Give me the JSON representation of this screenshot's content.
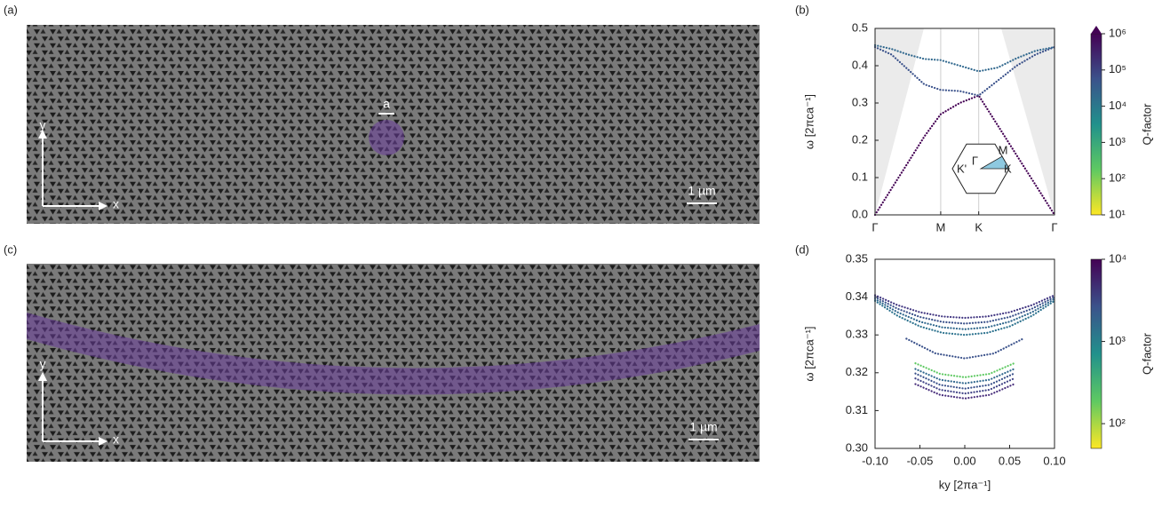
{
  "panels": [
    "(a)",
    "(b)",
    "(c)",
    "(d)"
  ],
  "sem_a": {
    "lattice": "a",
    "axis_x": "x",
    "axis_y": "y",
    "scale_bar": "1 µm"
  },
  "sem_c": {
    "axis_x": "x",
    "axis_y": "y",
    "scale_bar": "1 µm"
  },
  "chart_data": [
    {
      "type": "scatter",
      "ylabel": "ω [2πca⁻¹]",
      "xlim": [
        0,
        1.577
      ],
      "ylim": [
        0,
        0.5
      ],
      "xticks": [
        {
          "value": 0,
          "label": "Γ"
        },
        {
          "value": 0.577,
          "label": "M"
        },
        {
          "value": 0.911,
          "label": "K"
        },
        {
          "value": 1.577,
          "label": "Γ"
        }
      ],
      "yticks": [
        {
          "value": 0,
          "label": "0.0"
        },
        0.1,
        0.2,
        0.3,
        0.4,
        0.5
      ],
      "xgrid": true,
      "inset_labels": [
        "Γ",
        "M",
        "K",
        "K'"
      ],
      "colorbar": {
        "label": "Q-factor",
        "lim": [
          10,
          1000000
        ],
        "ticks": [
          {
            "value": 10,
            "label": "10¹"
          },
          {
            "value": 100,
            "label": "10²"
          },
          {
            "value": 1000,
            "label": "10³"
          },
          {
            "value": 10000,
            "label": "10⁴"
          },
          {
            "value": 100000,
            "label": "10⁵"
          },
          {
            "value": 1000000,
            "label": "10⁶"
          }
        ]
      },
      "series": [
        {
          "color": "#440154",
          "x": [
            0,
            0.144,
            0.289,
            0.433,
            0.577,
            0.744,
            0.911,
            1.078,
            1.244,
            1.411,
            1.577
          ],
          "values": [
            0,
            0.07,
            0.14,
            0.21,
            0.27,
            0.3,
            0.32,
            0.24,
            0.16,
            0.08,
            0
          ]
        },
        {
          "color": "#3b528b",
          "x": [
            0,
            0.144,
            0.289,
            0.433,
            0.577,
            0.744,
            0.911,
            1.078,
            1.244,
            1.411,
            1.577
          ],
          "values": [
            0.45,
            0.43,
            0.39,
            0.35,
            0.335,
            0.332,
            0.32,
            0.36,
            0.4,
            0.43,
            0.45
          ]
        },
        {
          "color": "#31688e",
          "x": [
            0,
            0.144,
            0.289,
            0.433,
            0.577,
            0.744,
            0.911,
            1.078,
            1.244,
            1.411,
            1.577
          ],
          "values": [
            0.455,
            0.445,
            0.43,
            0.418,
            0.415,
            0.4,
            0.385,
            0.395,
            0.42,
            0.44,
            0.45
          ]
        }
      ]
    },
    {
      "type": "scatter",
      "ylabel": "ω [2πca⁻¹]",
      "xlabel": "ky [2πa⁻¹]",
      "xlim": [
        -0.1,
        0.1
      ],
      "ylim": [
        0.3,
        0.35
      ],
      "xticks": [
        {
          "value": -0.1,
          "label": "-0.10"
        },
        {
          "value": -0.05,
          "label": "-0.05"
        },
        {
          "value": 0,
          "label": "0.00"
        },
        0.05,
        {
          "value": 0.1,
          "label": "0.10"
        }
      ],
      "yticks": [
        {
          "value": 0.3,
          "label": "0.30"
        },
        0.31,
        0.32,
        0.33,
        0.34,
        {
          "value": 0.35,
          "label": "0.35"
        }
      ],
      "xgrid": false,
      "colorbar": {
        "label": "Q-factor",
        "lim": [
          50,
          10000
        ],
        "ticks": [
          {
            "value": 100,
            "label": "10²"
          },
          {
            "value": 1000,
            "label": "10³"
          },
          {
            "value": 10000,
            "label": "10⁴"
          }
        ]
      },
      "series": [
        {
          "color": "#443983",
          "x": [
            -0.1,
            -0.075,
            -0.05,
            -0.025,
            0,
            0.025,
            0.05,
            0.075,
            0.1
          ],
          "values": [
            0.3405,
            0.33788,
            0.336,
            0.33488,
            0.3345,
            0.33488,
            0.336,
            0.33788,
            0.3405
          ]
        },
        {
          "color": "#3b528b",
          "x": [
            -0.1,
            -0.075,
            -0.05,
            -0.025,
            0,
            0.025,
            0.05,
            0.075,
            0.1
          ],
          "values": [
            0.34,
            0.33694,
            0.33475,
            0.33344,
            0.333,
            0.33344,
            0.33475,
            0.33694,
            0.34
          ]
        },
        {
          "color": "#31688e",
          "x": [
            -0.1,
            -0.075,
            -0.05,
            -0.025,
            0,
            0.025,
            0.05,
            0.075,
            0.1
          ],
          "values": [
            0.3395,
            0.336,
            0.3335,
            0.332,
            0.3315,
            0.332,
            0.3335,
            0.336,
            0.3395
          ]
        },
        {
          "color": "#2c728e",
          "x": [
            -0.1,
            -0.075,
            -0.05,
            -0.025,
            0,
            0.025,
            0.05,
            0.075,
            0.1
          ],
          "values": [
            0.339,
            0.33506,
            0.33225,
            0.33056,
            0.33,
            0.33056,
            0.33225,
            0.33506,
            0.339
          ]
        },
        {
          "color": "#3b528b",
          "x": [
            -0.065,
            -0.0325,
            0,
            0.0325,
            0.065
          ],
          "values": [
            0.329,
            0.3251,
            0.3238,
            0.3251,
            0.329
          ]
        },
        {
          "color": "#5ec962",
          "x": [
            -0.055,
            -0.0275,
            0,
            0.0275,
            0.055
          ],
          "values": [
            0.3225,
            0.3197,
            0.3188,
            0.3197,
            0.3225
          ]
        },
        {
          "color": "#31688e",
          "x": [
            -0.055,
            -0.0275,
            0,
            0.0275,
            0.055
          ],
          "values": [
            0.321,
            0.31815,
            0.3172,
            0.31815,
            0.321
          ]
        },
        {
          "color": "#3b528b",
          "x": [
            -0.055,
            -0.0275,
            0,
            0.0275,
            0.055
          ],
          "values": [
            0.3198,
            0.3168,
            0.3158,
            0.3168,
            0.3198
          ]
        },
        {
          "color": "#414487",
          "x": [
            -0.055,
            -0.0275,
            0,
            0.0275,
            0.055
          ],
          "values": [
            0.3185,
            0.3155,
            0.3145,
            0.3155,
            0.3185
          ]
        },
        {
          "color": "#472d7b",
          "x": [
            -0.055,
            -0.0275,
            0,
            0.0275,
            0.055
          ],
          "values": [
            0.317,
            0.31415,
            0.3132,
            0.31415,
            0.317
          ]
        }
      ]
    }
  ]
}
